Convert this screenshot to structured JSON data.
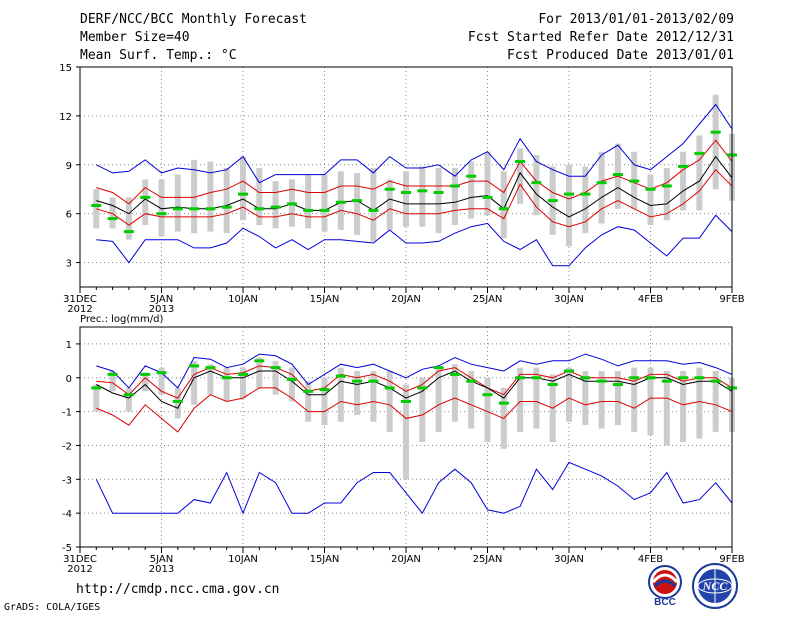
{
  "header": {
    "title": "DERF/NCC/BCC Monthly Forecast",
    "member_size": "Member Size=40",
    "variable": "Mean Surf. Temp.: °C",
    "period": "For 2013/01/01-2013/02/09",
    "started": "Fcst Started Refer Date 2012/12/31",
    "produced": "Fcst Produced Date 2013/01/01"
  },
  "footer": {
    "url": "http://cmdp.ncc.cma.gov.cn",
    "grads": "GrADS: COLA/IGES",
    "logo_bcc": "BCC",
    "logo_ncc": "NCC"
  },
  "colors": {
    "max": "#0000dd",
    "min": "#0000dd",
    "p10": "#dd0000",
    "p90": "#dd0000",
    "mean": "#000000",
    "median": "#00cc00",
    "box": "#cccccc"
  },
  "chart_data": [
    {
      "type": "box-line",
      "title": "Mean Surf. Temp.: °C",
      "ylim": [
        1.5,
        15
      ],
      "yticks": [
        "3",
        "6",
        "9",
        "12",
        "15"
      ],
      "xlim": [
        0,
        40
      ],
      "xticks": [
        {
          "x": 0,
          "label": "31DEC",
          "sub": "2012"
        },
        {
          "x": 5,
          "label": "5JAN",
          "sub": "2013"
        },
        {
          "x": 10,
          "label": "10JAN",
          "sub": ""
        },
        {
          "x": 15,
          "label": "15JAN",
          "sub": ""
        },
        {
          "x": 20,
          "label": "20JAN",
          "sub": ""
        },
        {
          "x": 25,
          "label": "25JAN",
          "sub": ""
        },
        {
          "x": 30,
          "label": "30JAN",
          "sub": ""
        },
        {
          "x": 35,
          "label": "4FEB",
          "sub": ""
        },
        {
          "x": 40,
          "label": "9FEB",
          "sub": ""
        }
      ],
      "x": [
        1,
        2,
        3,
        4,
        5,
        6,
        7,
        8,
        9,
        10,
        11,
        12,
        13,
        14,
        15,
        16,
        17,
        18,
        19,
        20,
        21,
        22,
        23,
        24,
        25,
        26,
        27,
        28,
        29,
        30,
        31,
        32,
        33,
        34,
        35,
        36,
        37,
        38,
        39,
        40
      ],
      "series": [
        {
          "name": "max",
          "values": [
            9.0,
            8.5,
            8.6,
            9.3,
            8.5,
            8.8,
            8.7,
            8.5,
            8.7,
            9.5,
            7.9,
            8.4,
            8.4,
            8.4,
            8.4,
            9.3,
            9.3,
            8.5,
            9.5,
            8.8,
            8.8,
            9.0,
            8.3,
            9.3,
            9.8,
            8.7,
            10.6,
            9.2,
            8.7,
            8.3,
            8.3,
            9.6,
            10.2,
            9.0,
            8.7,
            9.5,
            10.3,
            11.5,
            12.7,
            11.2
          ]
        },
        {
          "name": "p90",
          "values": [
            7.6,
            7.3,
            6.6,
            7.6,
            7.0,
            7.0,
            7.0,
            7.3,
            7.5,
            8.0,
            7.3,
            7.3,
            7.5,
            7.3,
            7.3,
            7.7,
            7.7,
            7.5,
            8.0,
            7.7,
            7.7,
            7.7,
            7.7,
            8.0,
            8.0,
            7.3,
            9.2,
            8.0,
            7.3,
            6.9,
            7.3,
            8.0,
            8.3,
            7.9,
            7.5,
            7.9,
            8.7,
            9.3,
            10.5,
            9.2
          ]
        },
        {
          "name": "mean",
          "values": [
            6.8,
            6.5,
            6.0,
            6.9,
            6.3,
            6.4,
            6.3,
            6.3,
            6.5,
            6.9,
            6.3,
            6.3,
            6.6,
            6.2,
            6.2,
            6.7,
            6.8,
            6.2,
            6.9,
            6.6,
            6.6,
            6.6,
            6.7,
            7.0,
            7.1,
            6.3,
            8.5,
            7.2,
            6.4,
            5.8,
            6.3,
            7.0,
            7.6,
            7.0,
            6.5,
            6.6,
            7.4,
            8.0,
            9.5,
            8.2
          ]
        },
        {
          "name": "p10",
          "values": [
            6.3,
            6.0,
            5.3,
            6.0,
            5.8,
            5.8,
            5.8,
            5.8,
            6.0,
            6.4,
            5.8,
            5.8,
            6.0,
            5.8,
            5.8,
            6.2,
            6.0,
            5.6,
            6.3,
            6.0,
            6.0,
            6.0,
            6.2,
            6.3,
            6.3,
            5.7,
            7.8,
            6.4,
            5.5,
            5.2,
            5.5,
            6.3,
            6.8,
            6.3,
            5.8,
            6.0,
            6.6,
            7.4,
            8.7,
            7.7
          ]
        },
        {
          "name": "min",
          "values": [
            4.4,
            4.3,
            3.0,
            4.4,
            4.4,
            4.4,
            3.9,
            3.9,
            4.2,
            5.1,
            4.6,
            3.9,
            4.4,
            3.8,
            4.4,
            4.4,
            4.3,
            4.2,
            5.0,
            4.2,
            4.2,
            4.3,
            4.8,
            5.2,
            5.4,
            4.3,
            3.8,
            4.4,
            2.8,
            2.8,
            3.9,
            4.7,
            5.2,
            5.0,
            4.2,
            3.4,
            4.5,
            4.5,
            5.9,
            4.9
          ]
        },
        {
          "name": "median",
          "values": [
            6.5,
            5.7,
            4.9,
            7.0,
            6.0,
            6.3,
            6.3,
            6.3,
            6.4,
            7.2,
            6.3,
            6.4,
            6.6,
            6.2,
            6.2,
            6.7,
            6.8,
            6.2,
            7.5,
            7.3,
            7.4,
            7.3,
            7.7,
            8.3,
            7.0,
            6.3,
            9.2,
            7.9,
            6.8,
            7.2,
            7.2,
            7.9,
            8.4,
            8.0,
            7.5,
            7.7,
            8.9,
            9.7,
            11.0,
            9.6
          ]
        },
        {
          "name": "box_high",
          "values": [
            7.5,
            7.0,
            7.0,
            8.1,
            8.1,
            8.4,
            9.3,
            9.2,
            8.8,
            9.5,
            8.8,
            8.0,
            8.1,
            8.4,
            8.4,
            8.6,
            8.5,
            8.8,
            8.1,
            8.6,
            8.9,
            8.8,
            8.8,
            9.2,
            9.8,
            8.6,
            10.0,
            9.6,
            8.9,
            9.0,
            8.9,
            9.8,
            10.3,
            9.8,
            8.4,
            8.8,
            9.8,
            10.8,
            13.3,
            10.9
          ]
        },
        {
          "name": "box_low",
          "values": [
            5.1,
            5.1,
            4.4,
            5.3,
            4.6,
            4.9,
            4.8,
            4.9,
            4.8,
            5.6,
            5.3,
            5.1,
            5.2,
            5.1,
            4.9,
            5.0,
            4.7,
            4.3,
            5.0,
            5.2,
            5.2,
            4.8,
            5.3,
            5.7,
            5.9,
            4.5,
            6.6,
            5.9,
            4.7,
            4.0,
            4.8,
            5.4,
            6.3,
            6.3,
            5.3,
            5.6,
            6.2,
            6.2,
            7.5,
            6.8
          ]
        }
      ]
    },
    {
      "type": "box-line",
      "title": "Prec.: log(mm/d)",
      "ylim": [
        -5,
        1.5
      ],
      "yticks": [
        "-5",
        "-4",
        "-3",
        "-2",
        "-1",
        "0",
        "1"
      ],
      "xlim": [
        0,
        40
      ],
      "xticks": [
        {
          "x": 0,
          "label": "31DEC",
          "sub": "2012"
        },
        {
          "x": 5,
          "label": "5JAN",
          "sub": "2013"
        },
        {
          "x": 10,
          "label": "10JAN",
          "sub": ""
        },
        {
          "x": 15,
          "label": "15JAN",
          "sub": ""
        },
        {
          "x": 20,
          "label": "20JAN",
          "sub": ""
        },
        {
          "x": 25,
          "label": "25JAN",
          "sub": ""
        },
        {
          "x": 30,
          "label": "30JAN",
          "sub": ""
        },
        {
          "x": 35,
          "label": "4FEB",
          "sub": ""
        },
        {
          "x": 40,
          "label": "9FEB",
          "sub": ""
        }
      ],
      "x": [
        1,
        2,
        3,
        4,
        5,
        6,
        7,
        8,
        9,
        10,
        11,
        12,
        13,
        14,
        15,
        16,
        17,
        18,
        19,
        20,
        21,
        22,
        23,
        24,
        25,
        26,
        27,
        28,
        29,
        30,
        31,
        32,
        33,
        34,
        35,
        36,
        37,
        38,
        39,
        40
      ],
      "series": [
        {
          "name": "max",
          "values": [
            0.35,
            0.2,
            -0.3,
            0.35,
            0.15,
            -0.3,
            0.6,
            0.55,
            0.3,
            0.4,
            0.7,
            0.65,
            0.4,
            -0.2,
            0.1,
            0.4,
            0.3,
            0.4,
            0.2,
            0.0,
            0.25,
            0.35,
            0.6,
            0.4,
            0.3,
            0.2,
            0.5,
            0.4,
            0.5,
            0.5,
            0.7,
            0.55,
            0.35,
            0.5,
            0.5,
            0.5,
            0.4,
            0.45,
            0.3,
            0.1
          ]
        },
        {
          "name": "p90",
          "values": [
            -0.1,
            -0.15,
            -0.5,
            0.0,
            -0.4,
            -0.6,
            0.1,
            0.3,
            0.1,
            0.15,
            0.35,
            0.3,
            0.1,
            -0.4,
            -0.3,
            0.1,
            0.0,
            0.1,
            -0.1,
            -0.4,
            -0.2,
            0.2,
            0.3,
            0.0,
            -0.3,
            -0.5,
            0.1,
            0.1,
            0.0,
            0.2,
            0.0,
            0.0,
            0.0,
            -0.1,
            0.1,
            0.1,
            -0.1,
            0.0,
            0.0,
            -0.3
          ]
        },
        {
          "name": "mean",
          "values": [
            -0.2,
            -0.45,
            -0.6,
            -0.2,
            -0.7,
            -0.9,
            0.0,
            0.2,
            0.0,
            0.0,
            0.2,
            0.2,
            -0.1,
            -0.5,
            -0.5,
            -0.1,
            -0.2,
            -0.1,
            -0.3,
            -0.6,
            -0.4,
            0.0,
            0.2,
            -0.1,
            -0.3,
            -0.6,
            0.0,
            0.0,
            -0.1,
            0.1,
            -0.1,
            -0.1,
            -0.1,
            -0.2,
            0.0,
            0.0,
            -0.2,
            -0.1,
            -0.1,
            -0.4
          ]
        },
        {
          "name": "p10",
          "values": [
            -0.9,
            -1.1,
            -1.4,
            -0.8,
            -1.2,
            -1.6,
            -0.9,
            -0.5,
            -0.7,
            -0.6,
            -0.3,
            -0.3,
            -0.6,
            -1.0,
            -1.0,
            -0.7,
            -0.8,
            -0.7,
            -0.8,
            -1.2,
            -1.1,
            -0.8,
            -0.6,
            -0.8,
            -1.0,
            -1.2,
            -0.7,
            -0.7,
            -0.9,
            -0.6,
            -0.8,
            -0.7,
            -0.7,
            -0.9,
            -0.6,
            -0.6,
            -0.8,
            -0.7,
            -0.8,
            -1.0
          ]
        },
        {
          "name": "min",
          "values": [
            -3.0,
            -4.0,
            -4.0,
            -4.0,
            -4.0,
            -4.0,
            -3.6,
            -3.7,
            -2.8,
            -4.0,
            -2.8,
            -3.1,
            -4.0,
            -4.0,
            -3.7,
            -3.7,
            -3.1,
            -2.8,
            -2.8,
            -3.4,
            -4.0,
            -3.1,
            -2.7,
            -3.1,
            -3.9,
            -4.0,
            -3.8,
            -2.7,
            -3.3,
            -2.5,
            -2.7,
            -2.9,
            -3.2,
            -3.6,
            -3.4,
            -2.8,
            -3.7,
            -3.6,
            -3.1,
            -3.7
          ]
        },
        {
          "name": "median",
          "values": [
            -0.3,
            0.1,
            -0.5,
            0.1,
            0.15,
            -0.7,
            0.35,
            0.3,
            0.0,
            0.1,
            0.5,
            0.3,
            -0.05,
            -0.4,
            -0.35,
            0.05,
            -0.1,
            -0.1,
            -0.3,
            -0.7,
            -0.3,
            0.3,
            0.1,
            -0.1,
            -0.5,
            -0.75,
            0.0,
            0.0,
            -0.2,
            0.2,
            0.0,
            -0.1,
            -0.2,
            0.0,
            0.0,
            -0.1,
            0.0,
            0.0,
            -0.1,
            -0.3
          ]
        },
        {
          "name": "box_high",
          "values": [
            -0.2,
            0.2,
            -0.3,
            0.15,
            0.3,
            -0.3,
            0.5,
            0.4,
            0.3,
            0.3,
            0.6,
            0.5,
            0.3,
            -0.1,
            0.0,
            0.3,
            0.2,
            0.2,
            0.2,
            -0.2,
            0.0,
            0.3,
            0.4,
            0.2,
            0.0,
            -0.3,
            0.3,
            0.3,
            0.1,
            0.3,
            0.2,
            0.2,
            0.2,
            0.3,
            0.3,
            0.2,
            0.2,
            0.3,
            0.2,
            0.0
          ]
        },
        {
          "name": "box_low",
          "values": [
            -1.0,
            -0.4,
            -1.0,
            -0.4,
            -0.5,
            -1.2,
            -0.8,
            -0.5,
            -0.7,
            -0.6,
            -0.3,
            -0.5,
            -0.7,
            -1.3,
            -1.4,
            -1.3,
            -1.1,
            -1.3,
            -1.6,
            -3.0,
            -1.9,
            -1.6,
            -1.3,
            -1.5,
            -1.9,
            -2.1,
            -1.6,
            -1.5,
            -1.9,
            -1.3,
            -1.4,
            -1.5,
            -1.4,
            -1.6,
            -1.7,
            -2.0,
            -1.9,
            -1.8,
            -1.6,
            -1.6
          ]
        }
      ]
    }
  ]
}
